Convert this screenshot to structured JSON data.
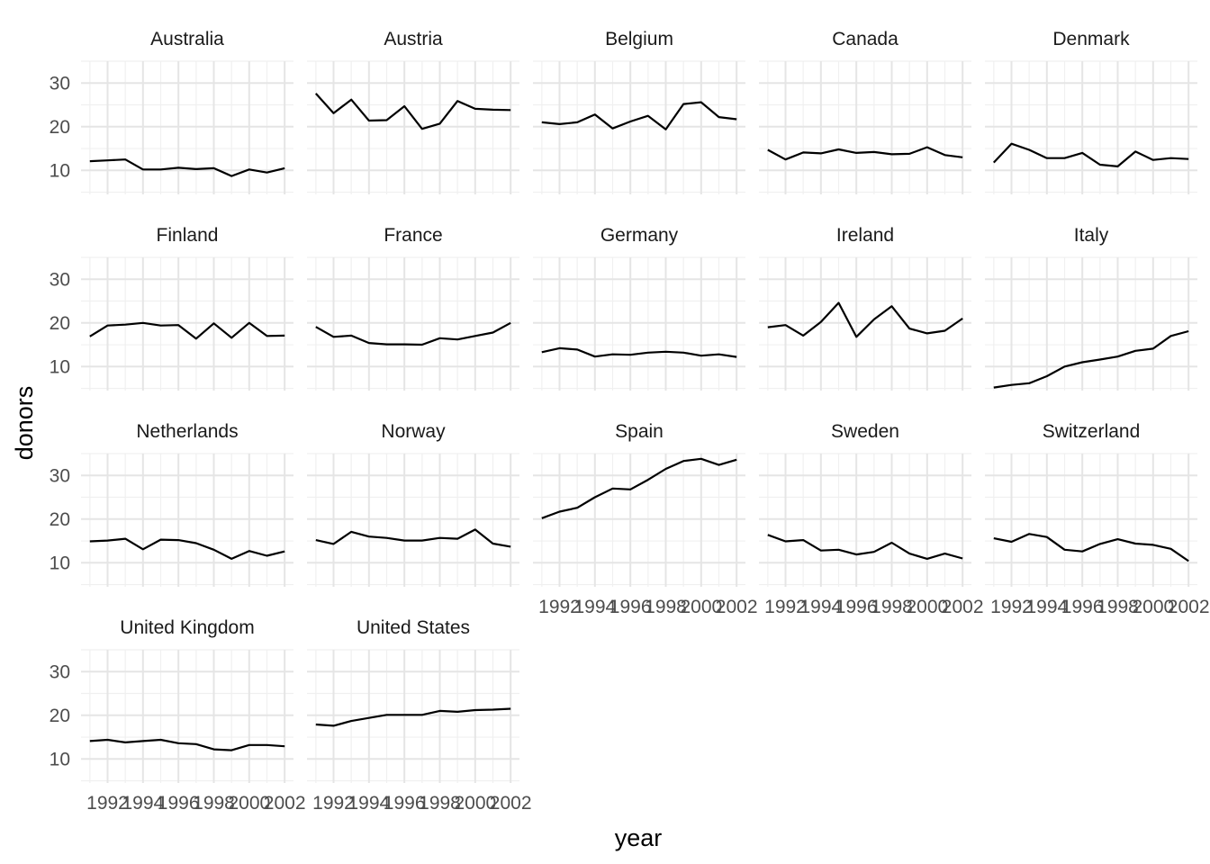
{
  "chart_data": {
    "type": "line",
    "layout": "facet_wrap",
    "facet_cols": 5,
    "xlabel": "year",
    "ylabel": "donors",
    "xlim": [
      1990.5,
      2002.5
    ],
    "ylim": [
      4.5,
      35
    ],
    "x_ticks": [
      1992,
      1994,
      1996,
      1998,
      2000,
      2002
    ],
    "y_ticks": [
      10,
      20,
      30
    ],
    "x": [
      1991,
      1992,
      1993,
      1994,
      1995,
      1996,
      1997,
      1998,
      1999,
      2000,
      2001,
      2002
    ],
    "series": [
      {
        "name": "Australia",
        "values": [
          12.1,
          12.3,
          12.5,
          10.2,
          10.2,
          10.6,
          10.3,
          10.5,
          8.7,
          10.2,
          9.5,
          10.5
        ]
      },
      {
        "name": "Austria",
        "values": [
          27.6,
          23.1,
          26.2,
          21.4,
          21.5,
          24.7,
          19.5,
          20.7,
          25.9,
          24.1,
          23.9,
          23.8
        ]
      },
      {
        "name": "Belgium",
        "values": [
          21.0,
          20.6,
          21.0,
          22.8,
          19.6,
          21.2,
          22.5,
          19.4,
          25.2,
          25.6,
          22.2,
          21.7
        ]
      },
      {
        "name": "Canada",
        "values": [
          14.7,
          12.5,
          14.1,
          13.9,
          14.8,
          14.0,
          14.2,
          13.7,
          13.8,
          15.3,
          13.5,
          13.0
        ]
      },
      {
        "name": "Denmark",
        "values": [
          11.8,
          16.1,
          14.7,
          12.8,
          12.8,
          14.0,
          11.3,
          10.9,
          14.3,
          12.4,
          12.8,
          12.6
        ]
      },
      {
        "name": "Finland",
        "values": [
          16.9,
          19.4,
          19.6,
          20.0,
          19.4,
          19.5,
          16.4,
          19.9,
          16.6,
          20.0,
          17.0,
          17.1
        ]
      },
      {
        "name": "France",
        "values": [
          19.1,
          16.8,
          17.1,
          15.4,
          15.1,
          15.1,
          15.0,
          16.5,
          16.2,
          17.0,
          17.8,
          20.0
        ]
      },
      {
        "name": "Germany",
        "values": [
          13.3,
          14.2,
          13.9,
          12.3,
          12.8,
          12.7,
          13.2,
          13.4,
          13.2,
          12.5,
          12.8,
          12.2
        ]
      },
      {
        "name": "Ireland",
        "values": [
          19.0,
          19.5,
          17.1,
          20.2,
          24.6,
          16.8,
          20.8,
          23.8,
          18.7,
          17.6,
          18.2,
          21.0
        ]
      },
      {
        "name": "Italy",
        "values": [
          5.2,
          5.8,
          6.2,
          7.8,
          10.0,
          11.0,
          11.6,
          12.3,
          13.6,
          14.1,
          17.0,
          18.1
        ]
      },
      {
        "name": "Netherlands",
        "values": [
          14.9,
          15.1,
          15.5,
          13.1,
          15.3,
          15.2,
          14.5,
          13.0,
          10.9,
          12.7,
          11.6,
          12.6
        ]
      },
      {
        "name": "Norway",
        "values": [
          15.2,
          14.3,
          17.1,
          16.0,
          15.7,
          15.1,
          15.1,
          15.7,
          15.5,
          17.6,
          14.4,
          13.7
        ]
      },
      {
        "name": "Spain",
        "values": [
          20.2,
          21.7,
          22.6,
          25.0,
          27.0,
          26.8,
          29.0,
          31.5,
          33.3,
          33.8,
          32.4,
          33.6
        ]
      },
      {
        "name": "Sweden",
        "values": [
          16.4,
          14.9,
          15.2,
          12.8,
          13.0,
          11.9,
          12.5,
          14.6,
          12.1,
          10.9,
          12.1,
          11.0
        ]
      },
      {
        "name": "Switzerland",
        "values": [
          15.6,
          14.8,
          16.6,
          15.9,
          13.0,
          12.6,
          14.3,
          15.4,
          14.4,
          14.1,
          13.2,
          10.4
        ]
      },
      {
        "name": "United Kingdom",
        "values": [
          14.1,
          14.4,
          13.8,
          14.1,
          14.4,
          13.6,
          13.4,
          12.2,
          12.0,
          13.2,
          13.2,
          12.9
        ]
      },
      {
        "name": "United States",
        "values": [
          17.9,
          17.6,
          18.7,
          19.4,
          20.1,
          20.1,
          20.1,
          21.0,
          20.8,
          21.2,
          21.3,
          21.5
        ]
      }
    ]
  }
}
